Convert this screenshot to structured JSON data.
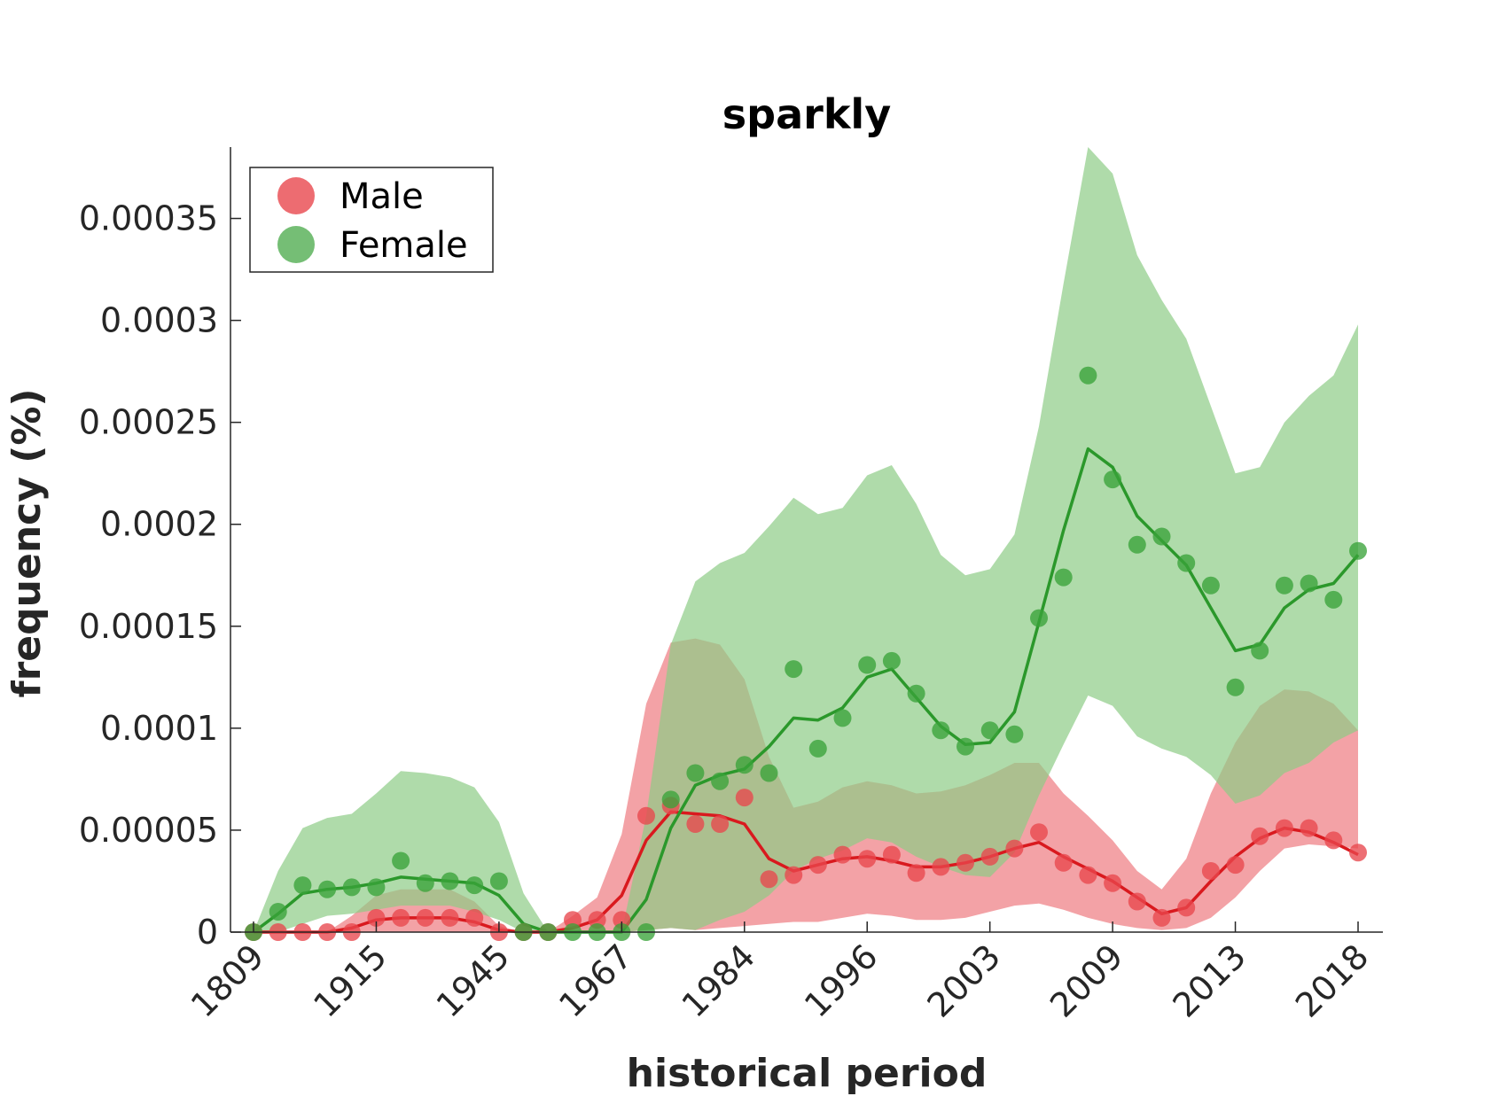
{
  "chart_data": {
    "type": "line",
    "title": "sparkly",
    "xlabel": "historical period",
    "ylabel": "frequency (%)",
    "ylim": [
      0,
      0.000385
    ],
    "y_ticks": [
      0,
      5e-05,
      0.0001,
      0.00015,
      0.0002,
      0.00025,
      0.0003,
      0.00035
    ],
    "y_tick_labels": [
      "0",
      "0.00005",
      "0.0001",
      "0.00015",
      "0.0002",
      "0.00025",
      "0.0003",
      "0.00035"
    ],
    "x_tick_labels": [
      "1809",
      "1915",
      "1945",
      "1967",
      "1984",
      "1996",
      "2003",
      "2009",
      "2013",
      "2018"
    ],
    "x_tick_index": [
      0,
      5,
      10,
      15,
      20,
      25,
      30,
      35,
      40,
      45
    ],
    "n_points": 46,
    "legend": {
      "position": "top-left",
      "entries": [
        "Male",
        "Female"
      ]
    },
    "colors": {
      "Male": "#e8474d",
      "Female": "#3aa33a",
      "male_line": "#d9191e",
      "female_line": "#2b982b",
      "male_band": "#ee7b80",
      "female_band": "#8dcc86"
    },
    "series": [
      {
        "name": "Male",
        "points": [
          0,
          0,
          0,
          0,
          0,
          7e-06,
          7e-06,
          7e-06,
          7e-06,
          7e-06,
          0,
          0,
          0,
          6e-06,
          6e-06,
          6e-06,
          5.7e-05,
          6.2e-05,
          5.3e-05,
          5.3e-05,
          6.6e-05,
          2.6e-05,
          2.8e-05,
          3.3e-05,
          3.8e-05,
          3.6e-05,
          3.8e-05,
          2.9e-05,
          3.2e-05,
          3.4e-05,
          3.7e-05,
          4.1e-05,
          4.9e-05,
          3.4e-05,
          2.8e-05,
          2.4e-05,
          1.5e-05,
          7e-06,
          1.2e-05,
          3e-05,
          3.3e-05,
          4.7e-05,
          5.1e-05,
          5.1e-05,
          4.5e-05,
          3.9e-05
        ],
        "trend": [
          0,
          0,
          0,
          0,
          2e-06,
          6e-06,
          7e-06,
          7e-06,
          7e-06,
          5e-06,
          1e-06,
          0,
          0,
          2e-06,
          6e-06,
          1.8e-05,
          4.5e-05,
          5.9e-05,
          5.8e-05,
          5.7e-05,
          5.3e-05,
          3.6e-05,
          3e-05,
          3.3e-05,
          3.6e-05,
          3.7e-05,
          3.5e-05,
          3.2e-05,
          3.2e-05,
          3.4e-05,
          3.7e-05,
          4.1e-05,
          4.4e-05,
          3.7e-05,
          3.1e-05,
          2.5e-05,
          1.7e-05,
          9e-06,
          1.2e-05,
          2.5e-05,
          3.7e-05,
          4.6e-05,
          5.1e-05,
          4.9e-05,
          4.4e-05,
          3.8e-05
        ],
        "band_upper": [
          0,
          0,
          0,
          0,
          8e-06,
          1.8e-05,
          2.1e-05,
          2.1e-05,
          2.1e-05,
          1.5e-05,
          3e-06,
          0,
          0,
          8e-06,
          1.7e-05,
          4.8e-05,
          0.000112,
          0.000142,
          0.000144,
          0.000141,
          0.000124,
          8.6e-05,
          6.1e-05,
          6.4e-05,
          7.1e-05,
          7.4e-05,
          7.2e-05,
          6.8e-05,
          6.9e-05,
          7.2e-05,
          7.7e-05,
          8.3e-05,
          8.3e-05,
          6.8e-05,
          5.7e-05,
          4.5e-05,
          3e-05,
          2.1e-05,
          3.6e-05,
          6.8e-05,
          9.3e-05,
          0.000111,
          0.000119,
          0.000118,
          0.000112,
          9.9e-05
        ],
        "band_lower": [
          0,
          0,
          0,
          0,
          0,
          0,
          0,
          0,
          0,
          0,
          0,
          0,
          0,
          0,
          0,
          0,
          1e-06,
          2e-06,
          1e-06,
          2e-06,
          3e-06,
          4e-06,
          5e-06,
          5e-06,
          7e-06,
          9e-06,
          8e-06,
          6e-06,
          6e-06,
          7e-06,
          1e-05,
          1.3e-05,
          1.4e-05,
          1.1e-05,
          7e-06,
          4e-06,
          2e-06,
          1e-06,
          2e-06,
          7e-06,
          1.7e-05,
          3e-05,
          4.1e-05,
          4.3e-05,
          4.2e-05,
          4.1e-05
        ]
      },
      {
        "name": "Female",
        "points": [
          0,
          1e-05,
          2.3e-05,
          2.1e-05,
          2.2e-05,
          2.2e-05,
          3.5e-05,
          2.4e-05,
          2.5e-05,
          2.3e-05,
          2.5e-05,
          0,
          0,
          0,
          0,
          0,
          0,
          6.5e-05,
          7.8e-05,
          7.4e-05,
          8.2e-05,
          7.8e-05,
          0.000129,
          9e-05,
          0.000105,
          0.000131,
          0.000133,
          0.000117,
          9.9e-05,
          9.1e-05,
          9.9e-05,
          9.7e-05,
          0.000154,
          0.000174,
          0.000273,
          0.000222,
          0.00019,
          0.000194,
          0.000181,
          0.00017,
          0.00012,
          0.000138,
          0.00017,
          0.000171,
          0.000163,
          0.000187
        ],
        "trend": [
          0,
          9e-06,
          1.9e-05,
          2.1e-05,
          2.2e-05,
          2.4e-05,
          2.7e-05,
          2.6e-05,
          2.5e-05,
          2.4e-05,
          1.8e-05,
          4e-06,
          0,
          0,
          0,
          0,
          1.6e-05,
          5.1e-05,
          7.2e-05,
          7.7e-05,
          8e-05,
          9.1e-05,
          0.000105,
          0.000104,
          0.00011,
          0.000125,
          0.000129,
          0.000115,
          0.000101,
          9.2e-05,
          9.3e-05,
          0.000108,
          0.000152,
          0.000197,
          0.000237,
          0.000228,
          0.000204,
          0.000192,
          0.00018,
          0.000159,
          0.000138,
          0.000141,
          0.000159,
          0.000168,
          0.000171,
          0.000185
        ],
        "band_upper": [
          0,
          3e-05,
          5.1e-05,
          5.6e-05,
          5.8e-05,
          6.8e-05,
          7.9e-05,
          7.8e-05,
          7.6e-05,
          7.1e-05,
          5.4e-05,
          1.9e-05,
          0,
          0,
          0,
          0,
          5.7e-05,
          0.000141,
          0.000172,
          0.000181,
          0.000186,
          0.000199,
          0.000213,
          0.000205,
          0.000208,
          0.000224,
          0.000229,
          0.00021,
          0.000185,
          0.000175,
          0.000178,
          0.000195,
          0.000248,
          0.000318,
          0.000385,
          0.000372,
          0.000332,
          0.00031,
          0.000291,
          0.000258,
          0.000225,
          0.000228,
          0.00025,
          0.000263,
          0.000273,
          0.000298
        ],
        "band_lower": [
          0,
          0,
          4e-06,
          8e-06,
          9e-06,
          1.1e-05,
          1.3e-05,
          1.3e-05,
          1.3e-05,
          1e-05,
          6e-06,
          0,
          0,
          0,
          0,
          0,
          1e-06,
          2e-06,
          1e-06,
          6e-06,
          1e-05,
          1.8e-05,
          3e-05,
          3.6e-05,
          4e-05,
          4.6e-05,
          4.4e-05,
          3.7e-05,
          3.2e-05,
          2.8e-05,
          2.7e-05,
          3.9e-05,
          6.7e-05,
          9.2e-05,
          0.000116,
          0.000111,
          9.6e-05,
          9e-05,
          8.6e-05,
          7.7e-05,
          6.3e-05,
          6.7e-05,
          7.8e-05,
          8.3e-05,
          9.3e-05,
          9.9e-05
        ]
      }
    ]
  }
}
